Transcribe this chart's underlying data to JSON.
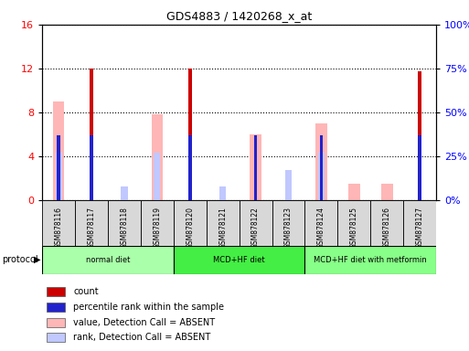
{
  "title": "GDS4883 / 1420268_x_at",
  "samples": [
    "GSM878116",
    "GSM878117",
    "GSM878118",
    "GSM878119",
    "GSM878120",
    "GSM878121",
    "GSM878122",
    "GSM878123",
    "GSM878124",
    "GSM878125",
    "GSM878126",
    "GSM878127"
  ],
  "count": [
    0,
    12,
    0,
    0,
    12,
    0,
    0,
    0,
    0,
    0,
    0,
    11.7
  ],
  "percentile_rank_pct": [
    37,
    37,
    0,
    0,
    37,
    0,
    37,
    0,
    37,
    0,
    0,
    37
  ],
  "value_absent": [
    9.0,
    0,
    0,
    7.8,
    0,
    0,
    6.0,
    0,
    7.0,
    1.5,
    1.5,
    0
  ],
  "rank_absent_pct": [
    27,
    0,
    8,
    27,
    0,
    8,
    0,
    17,
    27,
    0,
    0,
    0
  ],
  "groups": [
    {
      "label": "normal diet",
      "start": 0,
      "end": 3,
      "color": "#aaffaa"
    },
    {
      "label": "MCD+HF diet",
      "start": 4,
      "end": 7,
      "color": "#44ee44"
    },
    {
      "label": "MCD+HF diet with metformin",
      "start": 8,
      "end": 11,
      "color": "#88ff88"
    }
  ],
  "ylim_left": [
    0,
    16
  ],
  "ylim_right": [
    0,
    100
  ],
  "yticks_left": [
    0,
    4,
    8,
    12,
    16
  ],
  "yticks_right": [
    0,
    25,
    50,
    75,
    100
  ],
  "ytick_labels_right": [
    "0%",
    "25%",
    "50%",
    "75%",
    "100%"
  ],
  "color_count": "#cc0000",
  "color_percentile": "#2222cc",
  "color_value_absent": "#ffb6b6",
  "color_rank_absent": "#c0c8ff",
  "bg_color": "#d8d8d8"
}
